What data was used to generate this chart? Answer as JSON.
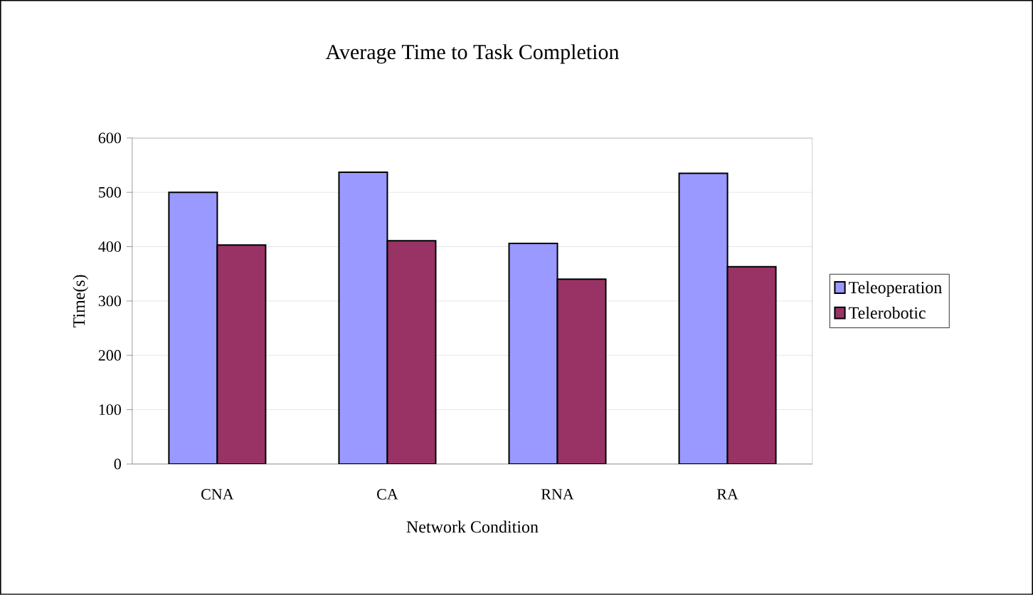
{
  "chart_data": {
    "type": "bar",
    "title": "Average Time to Task Completion",
    "xlabel": "Network Condition",
    "ylabel": "Time(s)",
    "categories": [
      "CNA",
      "CA",
      "RNA",
      "RA"
    ],
    "series": [
      {
        "name": "Teleoperation",
        "color": "#9999ff",
        "values": [
          500,
          537,
          406,
          535
        ]
      },
      {
        "name": "Telerobotic",
        "color": "#993366",
        "values": [
          403,
          411,
          340,
          363
        ]
      }
    ],
    "ylim": [
      0,
      600
    ],
    "yticks": [
      0,
      100,
      200,
      300,
      400,
      500,
      600
    ],
    "grid": "y",
    "legend": "right"
  }
}
